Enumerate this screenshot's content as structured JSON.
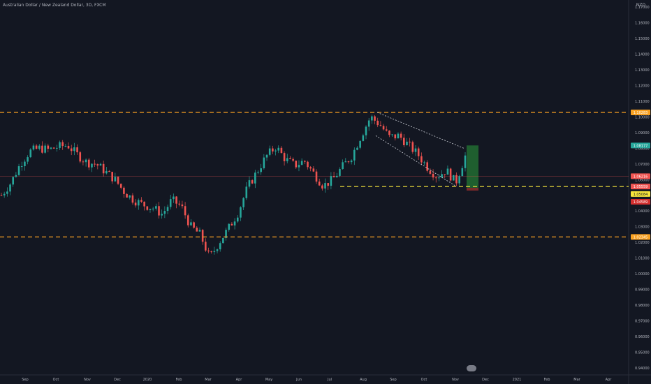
{
  "header": {
    "title": "Australian Dollar / New Zealand Dollar, 3D, FXCM",
    "currency": "NZD"
  },
  "colors": {
    "background": "#131722",
    "up": "#26a69a",
    "down": "#ef5350",
    "level": "#f7a021",
    "target_zone": "#1f5f2f",
    "axis_text": "#b2b5be"
  },
  "logo": {
    "icon": "tradingview-logo-icon"
  },
  "chart_data": {
    "type": "candlestick",
    "symbol": "AUDNZD",
    "interval": "3D",
    "source": "FXCM",
    "y_axis": {
      "ticks": [
        "1.17000",
        "1.16000",
        "1.15000",
        "1.14000",
        "1.13000",
        "1.12000",
        "1.11000",
        "1.10000",
        "1.09000",
        "1.08000",
        "1.07000",
        "1.06000",
        "1.05000",
        "1.04000",
        "1.03000",
        "1.02000",
        "1.01000",
        "1.00000",
        "0.99000",
        "0.98000",
        "0.97000",
        "0.96000",
        "0.95000",
        "0.94000"
      ],
      "range": [
        0.9355,
        1.1745
      ]
    },
    "x_axis": {
      "ticks": [
        "Sep",
        "Oct",
        "Nov",
        "Dec",
        "2020",
        "Feb",
        "Mar",
        "Apr",
        "May",
        "Jun",
        "Jul",
        "Aug",
        "Sep",
        "Oct",
        "Nov",
        "Dec",
        "2021",
        "Feb",
        "Mar",
        "Apr"
      ]
    },
    "price_labels": [
      {
        "text": "1.10283",
        "value": 1.10283,
        "color": "#f7a021"
      },
      {
        "text": "1.08177",
        "value": 1.08177,
        "color": "#26a69a"
      },
      {
        "text": "1.06216",
        "value": 1.06216,
        "color": "#ef5350"
      },
      {
        "text": "1.05559",
        "value": 1.05559,
        "color": "#ef5350"
      },
      {
        "text": "1.05084",
        "value": 1.05084,
        "color": "#f7e53b"
      },
      {
        "text": "1.04589",
        "value": 1.04589,
        "color": "#d32f2f"
      },
      {
        "text": "1.02345",
        "value": 1.02345,
        "color": "#f7a021"
      }
    ],
    "horizontal_levels": [
      {
        "value": 1.10283,
        "style": "dashed",
        "color": "#f7a021",
        "from": "start"
      },
      {
        "value": 1.05559,
        "style": "dashed",
        "color": "#f7e53b",
        "from": "Jul"
      },
      {
        "value": 1.02345,
        "style": "dashed",
        "color": "#f7a021",
        "from": "start"
      }
    ],
    "candles": {
      "start_month": "Aug 2019",
      "end_month": "Nov 2020",
      "close_anchors": [
        [
          1.05,
          1.058,
          1.07,
          1.078,
          1.08,
          1.079,
          1.081,
          1.082,
          1.076,
          1.071,
          1.07,
          1.065
        ],
        [
          1.06,
          1.052,
          1.047,
          1.044,
          1.042,
          1.038,
          1.047,
          1.043,
          1.03,
          1.025,
          1.01,
          1.02,
          1.029
        ],
        [
          1.039,
          1.055,
          1.065,
          1.075,
          1.081,
          1.073,
          1.069,
          1.072,
          1.064,
          1.056,
          1.06,
          1.068
        ],
        [
          1.075,
          1.088,
          1.1,
          1.095,
          1.087,
          1.088,
          1.082,
          1.076,
          1.068,
          1.062,
          1.066,
          1.058,
          1.075
        ]
      ]
    },
    "channel": {
      "upper": [
        [
          "Aug",
          1.10283
        ],
        [
          "Nov",
          1.08
        ]
      ],
      "lower": [
        [
          "Aug",
          1.088
        ],
        [
          "Nov",
          1.056
        ]
      ]
    },
    "target_zone": {
      "from": 1.0548,
      "to": 1.0818
    }
  }
}
